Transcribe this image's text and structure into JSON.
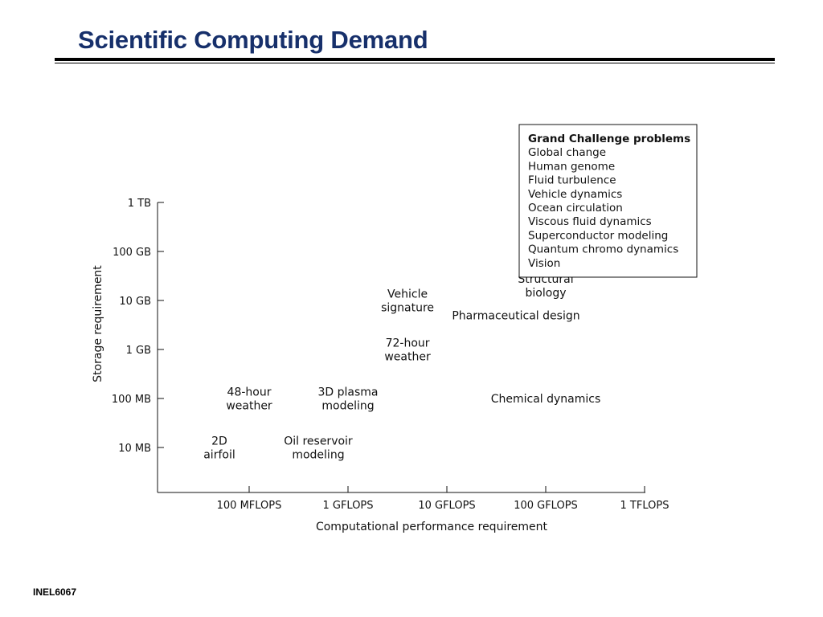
{
  "slide": {
    "title": "Scientific Computing Demand",
    "footer": "INEL6067"
  },
  "colors": {
    "title": "#17306b",
    "rules": "#000000",
    "chart_ink": "#111111"
  },
  "chart_data": {
    "type": "scatter",
    "title": "",
    "xlabel": "Computational performance requirement",
    "ylabel": "Storage requirement",
    "x_scale": "log",
    "y_scale": "log",
    "x_ticks": [
      "100 MFLOPS",
      "1 GFLOPS",
      "10 GFLOPS",
      "100 GFLOPS",
      "1 TFLOPS"
    ],
    "y_ticks": [
      "10 MB",
      "100 MB",
      "1 GB",
      "10 GB",
      "100 GB",
      "1 TB"
    ],
    "grid": false,
    "points": [
      {
        "label": [
          "2D",
          "airfoil"
        ],
        "x": "50 MFLOPS",
        "y": "10 MB"
      },
      {
        "label": [
          "Oil reservoir",
          "modeling"
        ],
        "x": "500 MFLOPS",
        "y": "10 MB"
      },
      {
        "label": [
          "48-hour",
          "weather"
        ],
        "x": "100 MFLOPS",
        "y": "100 MB"
      },
      {
        "label": [
          "3D plasma",
          "modeling"
        ],
        "x": "1 GFLOPS",
        "y": "100 MB"
      },
      {
        "label": [
          "Chemical dynamics"
        ],
        "x": "100 GFLOPS",
        "y": "100 MB"
      },
      {
        "label": [
          "72-hour",
          "weather"
        ],
        "x": "4 GFLOPS",
        "y": "1 GB"
      },
      {
        "label": [
          "Vehicle",
          "signature"
        ],
        "x": "4 GFLOPS",
        "y": "10 GB"
      },
      {
        "label": [
          "Pharmaceutical design"
        ],
        "x": "50 GFLOPS",
        "y": "5 GB"
      },
      {
        "label": [
          "Structural",
          "biology"
        ],
        "x": "100 GFLOPS",
        "y": "20 GB"
      }
    ],
    "legend": {
      "placement": "top-right",
      "title": "Grand Challenge problems",
      "items": [
        "Global change",
        "Human genome",
        "Fluid turbulence",
        "Vehicle dynamics",
        "Ocean circulation",
        "Viscous fluid dynamics",
        "Superconductor modeling",
        "Quantum chromo dynamics",
        "Vision"
      ]
    }
  }
}
